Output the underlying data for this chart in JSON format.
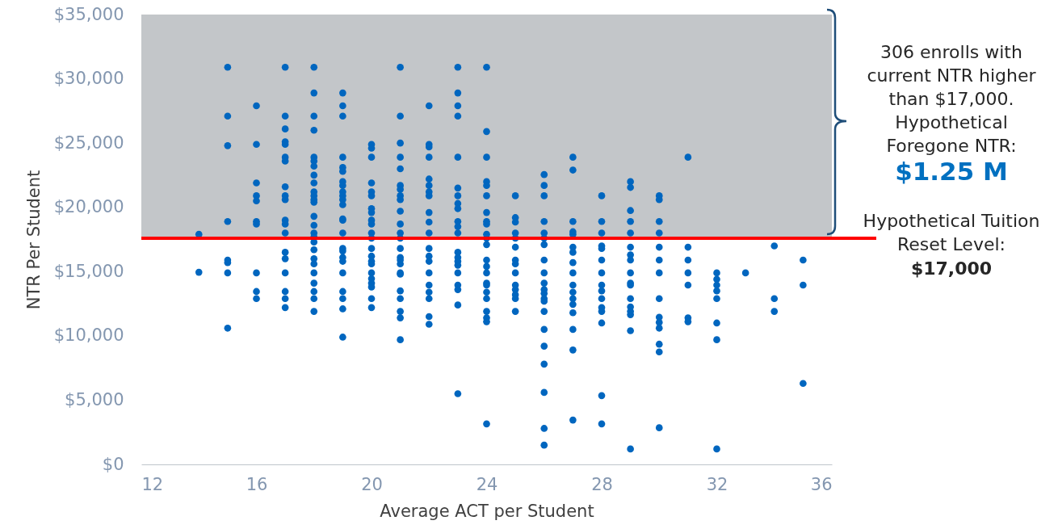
{
  "chart_data": {
    "type": "scatter",
    "xlabel": "Average ACT per Student",
    "ylabel": "NTR Per Student",
    "color": "#0066bf",
    "marker": "circle",
    "xlim": [
      12,
      36
    ],
    "xticks": [
      12,
      16,
      20,
      24,
      28,
      32,
      36
    ],
    "ylim": [
      0,
      35000
    ],
    "yticks": [
      {
        "value": 0,
        "label": "$0"
      },
      {
        "value": 5000,
        "label": "$5,000"
      },
      {
        "value": 10000,
        "label": "$10,000"
      },
      {
        "value": 15000,
        "label": "$15,000"
      },
      {
        "value": 20000,
        "label": "$20,000"
      },
      {
        "value": 25000,
        "label": "$25,000"
      },
      {
        "value": 30000,
        "label": "$30,000"
      },
      {
        "value": 35000,
        "label": "$35,000"
      }
    ],
    "x": [
      14,
      14,
      15,
      15,
      15,
      15,
      15,
      15,
      15,
      15,
      16,
      16,
      16,
      16,
      16,
      16,
      16,
      16,
      16,
      16,
      17,
      17,
      17,
      17,
      17,
      17,
      17,
      17,
      17,
      17,
      17,
      17,
      17,
      17,
      17,
      17,
      17,
      17,
      17,
      18,
      18,
      18,
      18,
      18,
      18,
      18,
      18,
      18,
      18,
      18,
      18,
      18,
      18,
      18,
      18,
      18,
      18,
      18,
      18,
      18,
      18,
      18,
      18,
      18,
      18,
      19,
      19,
      19,
      19,
      19,
      19,
      19,
      19,
      19,
      19,
      19,
      19,
      19,
      19,
      19,
      19,
      19,
      19,
      19,
      19,
      19,
      19,
      19,
      19,
      20,
      20,
      20,
      20,
      20,
      20,
      20,
      20,
      20,
      20,
      20,
      20,
      20,
      20,
      20,
      20,
      20,
      20,
      20,
      20,
      20,
      20,
      21,
      21,
      21,
      21,
      21,
      21,
      21,
      21,
      21,
      21,
      21,
      21,
      21,
      21,
      21,
      21,
      21,
      21,
      21,
      21,
      21,
      21,
      21,
      21,
      22,
      22,
      22,
      22,
      22,
      22,
      22,
      22,
      22,
      22,
      22,
      22,
      22,
      22,
      22,
      22,
      22,
      22,
      22,
      22,
      23,
      23,
      23,
      23,
      23,
      23,
      23,
      23,
      23,
      23,
      23,
      23,
      23,
      23,
      23,
      23,
      23,
      23,
      23,
      23,
      23,
      24,
      24,
      24,
      24,
      24,
      24,
      24,
      24,
      24,
      24,
      24,
      24,
      24,
      24,
      24,
      24,
      24,
      24,
      24,
      24,
      24,
      24,
      24,
      25,
      25,
      25,
      25,
      25,
      25,
      25,
      25,
      25,
      25,
      25,
      25,
      25,
      25,
      26,
      26,
      26,
      26,
      26,
      26,
      26,
      26,
      26,
      26,
      26,
      26,
      26,
      26,
      26,
      26,
      26,
      26,
      26,
      26,
      26,
      27,
      27,
      27,
      27,
      27,
      27,
      27,
      27,
      27,
      27,
      27,
      27,
      27,
      27,
      27,
      27,
      27,
      28,
      28,
      28,
      28,
      28,
      28,
      28,
      28,
      28,
      28,
      28,
      28,
      28,
      28,
      28,
      29,
      29,
      29,
      29,
      29,
      29,
      29,
      29,
      29,
      29,
      29,
      29,
      29,
      29,
      29,
      29,
      29,
      30,
      30,
      30,
      30,
      30,
      30,
      30,
      30,
      30,
      30,
      30,
      30,
      30,
      30,
      31,
      31,
      31,
      31,
      31,
      31,
      31,
      32,
      32,
      32,
      32,
      32,
      32,
      32,
      32,
      33,
      34,
      34,
      34,
      35,
      35,
      35
    ],
    "values": [
      17900,
      14950,
      30900,
      27100,
      24800,
      18900,
      15900,
      15700,
      14900,
      10600,
      27900,
      24900,
      21900,
      20900,
      20500,
      18900,
      18700,
      14900,
      13450,
      12900,
      30900,
      27100,
      26100,
      25100,
      24900,
      23900,
      23600,
      21600,
      20900,
      20600,
      19000,
      18700,
      18000,
      16500,
      16000,
      14900,
      13450,
      12900,
      12200,
      30900,
      28900,
      27100,
      26000,
      23900,
      23600,
      23200,
      22500,
      21900,
      21200,
      20900,
      20600,
      20400,
      19300,
      18600,
      18000,
      17700,
      17300,
      16700,
      16000,
      15600,
      14900,
      14100,
      13450,
      12900,
      11900,
      28900,
      27900,
      27100,
      23900,
      23100,
      22800,
      22000,
      21700,
      21200,
      20900,
      20600,
      20200,
      19100,
      19000,
      18000,
      16800,
      16600,
      16100,
      15800,
      14900,
      13450,
      12900,
      12100,
      9900,
      24900,
      24600,
      23900,
      21900,
      21200,
      20900,
      19900,
      19600,
      19000,
      18700,
      18000,
      17600,
      16800,
      16200,
      15800,
      15600,
      14900,
      14450,
      14100,
      13800,
      12900,
      12200,
      30900,
      27100,
      25000,
      23900,
      23000,
      21700,
      21400,
      20900,
      20600,
      19700,
      18700,
      18000,
      17600,
      16800,
      16100,
      15900,
      15600,
      14900,
      14800,
      13500,
      12900,
      11900,
      11400,
      9700,
      27900,
      24900,
      24700,
      23900,
      22200,
      21700,
      21200,
      20900,
      19600,
      18850,
      18000,
      16800,
      16200,
      15800,
      14900,
      13950,
      13400,
      12900,
      11500,
      10900,
      30900,
      28900,
      27900,
      27100,
      23900,
      21500,
      20900,
      20300,
      19900,
      18900,
      18500,
      18000,
      16500,
      16100,
      15800,
      15500,
      14900,
      13950,
      13600,
      12400,
      5500,
      30900,
      25900,
      23900,
      22000,
      21700,
      20900,
      19600,
      18900,
      18700,
      17900,
      17600,
      17100,
      15900,
      15400,
      14900,
      14100,
      13950,
      13400,
      12900,
      11900,
      11400,
      11100,
      3150,
      20900,
      19200,
      18850,
      18000,
      17600,
      16900,
      15900,
      15600,
      14900,
      13950,
      13600,
      13200,
      12900,
      11900,
      22550,
      21700,
      20900,
      18900,
      18000,
      17600,
      17100,
      15900,
      14900,
      14100,
      13600,
      13300,
      12900,
      12700,
      11900,
      10500,
      9200,
      7800,
      5600,
      2800,
      1500,
      23900,
      22900,
      18900,
      18100,
      17900,
      16900,
      16500,
      15700,
      14900,
      13950,
      13400,
      12900,
      12450,
      11800,
      10500,
      8900,
      3450,
      20900,
      18900,
      18000,
      17000,
      16800,
      15900,
      14900,
      13950,
      13500,
      12900,
      12200,
      11900,
      11000,
      5350,
      3150,
      22000,
      21550,
      19750,
      18900,
      18000,
      16900,
      16300,
      15900,
      14900,
      14100,
      13950,
      12900,
      12250,
      11900,
      11650,
      10400,
      1200,
      20900,
      20600,
      18900,
      18000,
      16900,
      15900,
      14900,
      12900,
      11450,
      11050,
      10600,
      9350,
      8750,
      2850,
      23900,
      16900,
      15900,
      14900,
      13950,
      11400,
      11100,
      14900,
      14400,
      13950,
      13500,
      12900,
      11000,
      9700,
      1200,
      14900,
      17000,
      12900,
      11900,
      15900,
      13950,
      6300
    ],
    "ref_lines": [
      {
        "axis": "y",
        "value": 17600,
        "color": "#ff0000",
        "label": "Hypothetical Tuition\nReset Level:"
      }
    ],
    "bands": [
      {
        "axis": "y",
        "from": 17600,
        "to": 35000,
        "color": "#c3c6c9",
        "label": "306 enrolls with\ncurrent NTR higher\nthan $17,000.\nHypothetical\nForegone NTR:"
      }
    ],
    "annotations": [
      "$1.25 M",
      "$17,000"
    ]
  }
}
